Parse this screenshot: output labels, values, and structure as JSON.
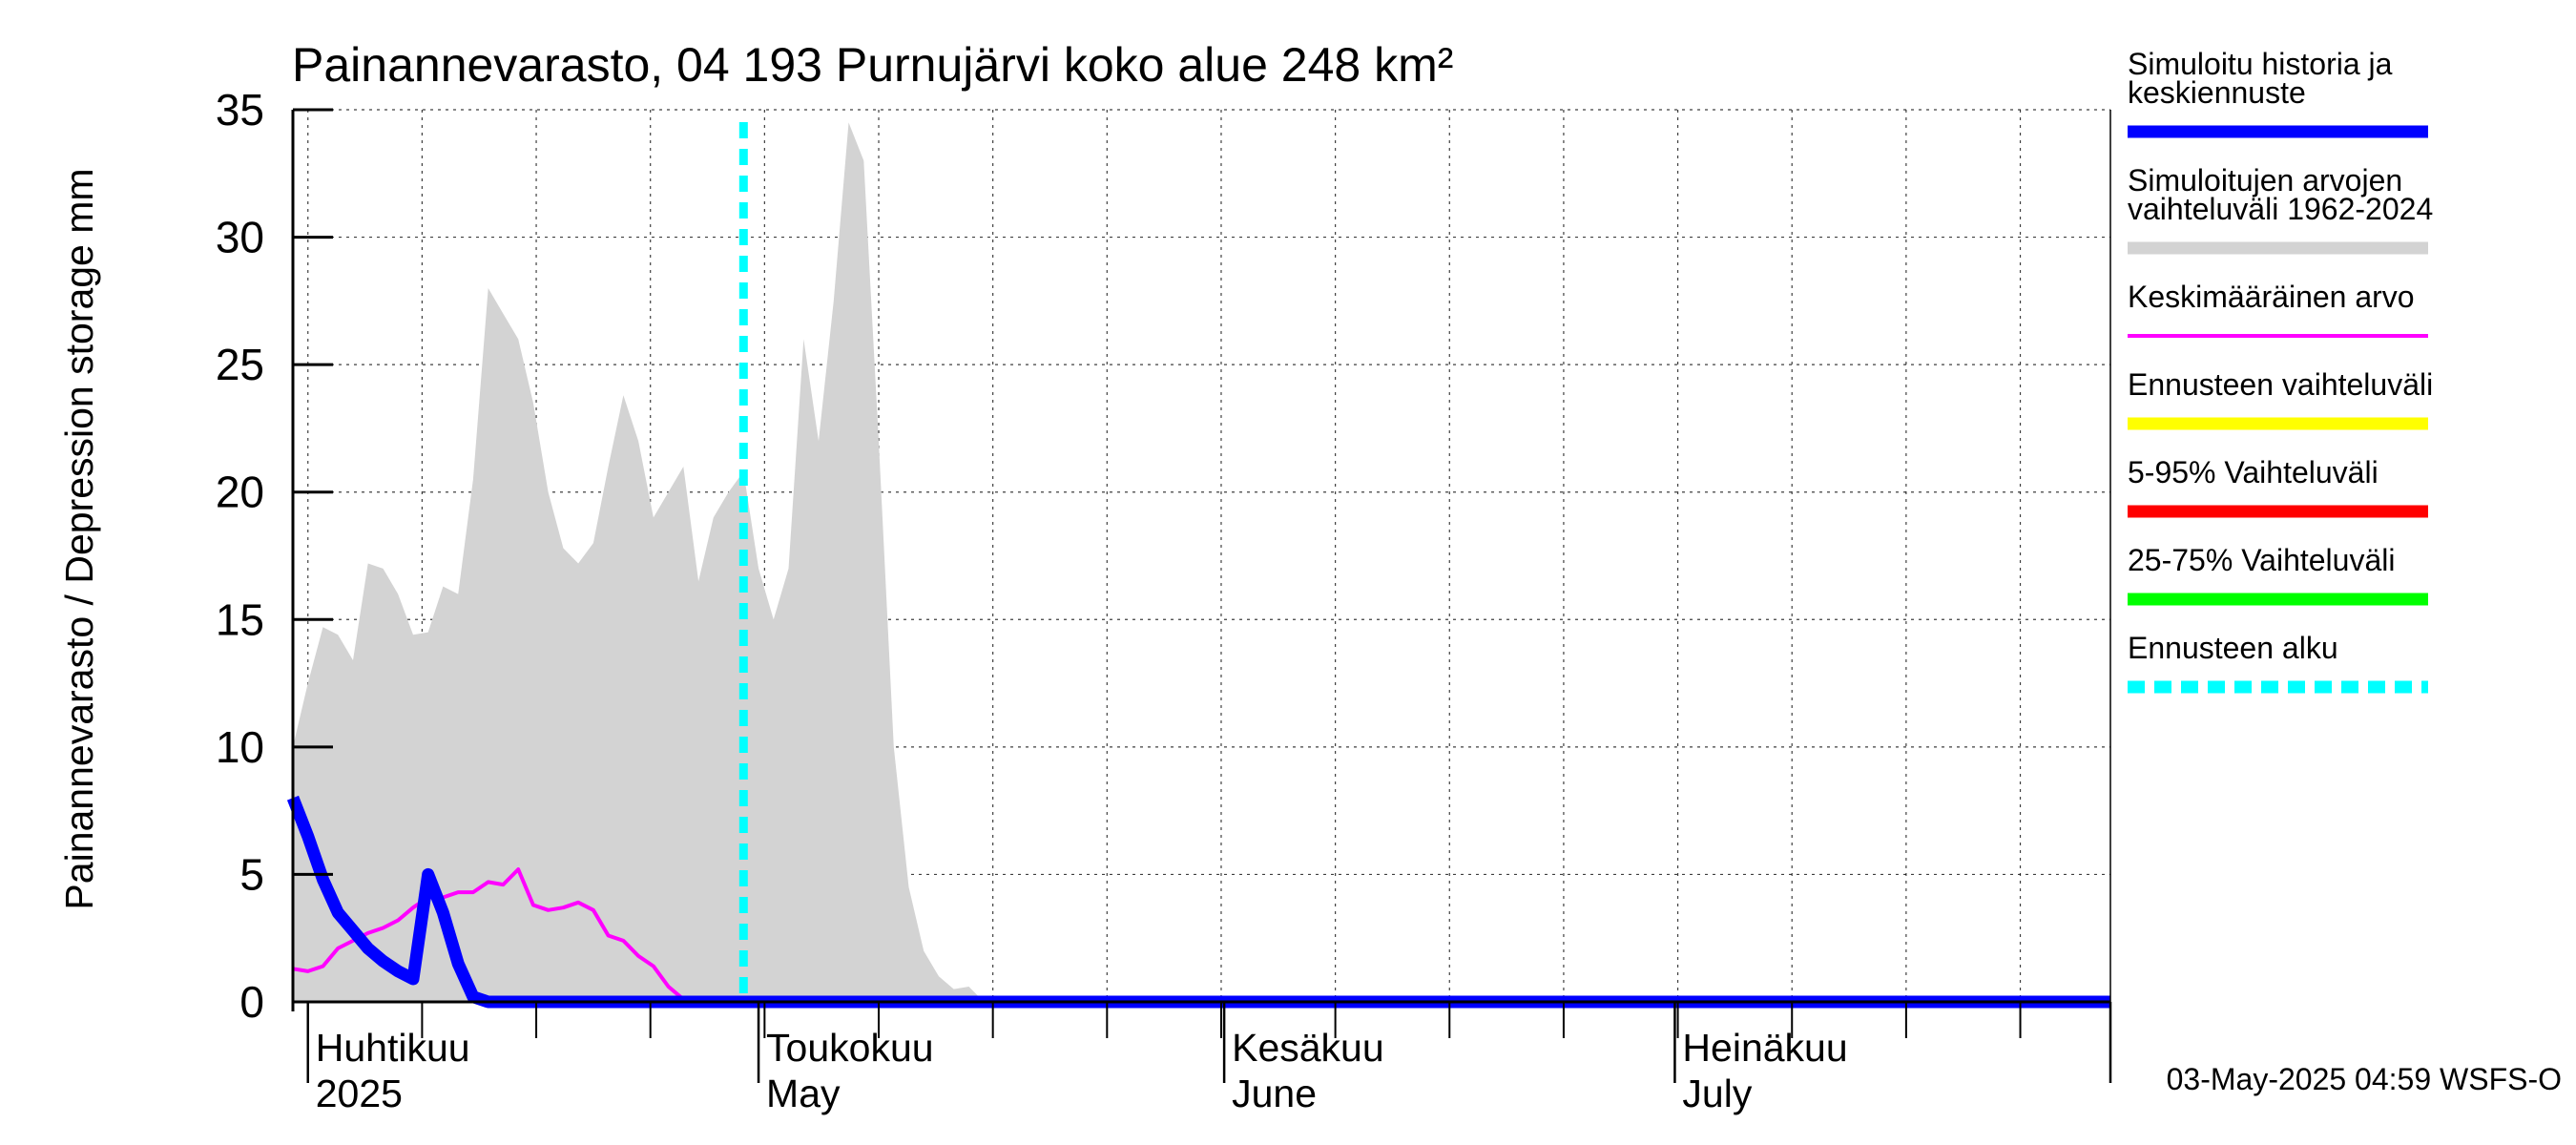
{
  "chart_data": {
    "type": "area",
    "title": "Painannevarasto, 04 193 Purnujärvi koko alue 248 km²",
    "ylabel": "Painannevarasto / Depression storage    mm",
    "ylim": [
      0,
      35
    ],
    "yticks": [
      0,
      5,
      10,
      15,
      20,
      25,
      30,
      35
    ],
    "x_range_days": [
      0,
      121
    ],
    "x_start_date": "2025-03-31",
    "month_labels": [
      {
        "fi": "Huhtikuu",
        "en": "2025",
        "day": 1
      },
      {
        "fi": "Toukokuu",
        "en": "May",
        "day": 31
      },
      {
        "fi": "Kesäkuu",
        "en": "June",
        "day": 62
      },
      {
        "fi": "Heinäkuu",
        "en": "July",
        "day": 92
      }
    ],
    "month_boundaries": [
      1,
      31,
      62,
      92,
      121
    ],
    "forecast_start_day": 30,
    "series": [
      {
        "name": "Simuloitujen arvojen vaihteluväli 1962-2024",
        "kind": "band",
        "color": "#d3d3d3",
        "x": [
          0,
          1,
          2,
          3,
          4,
          5,
          6,
          7,
          8,
          9,
          10,
          11,
          12,
          13,
          14,
          15,
          16,
          17,
          18,
          19,
          20,
          21,
          22,
          23,
          24,
          25,
          26,
          27,
          28,
          29,
          30,
          31,
          32,
          33,
          34,
          35,
          36,
          37,
          38,
          39,
          40,
          41,
          42,
          43,
          44,
          45,
          46,
          47,
          48,
          121
        ],
        "upper": [
          10,
          12.5,
          14.7,
          14.4,
          13.4,
          17.2,
          17.0,
          16.0,
          14.4,
          14.5,
          16.3,
          16.0,
          20.5,
          28.0,
          27.0,
          26.0,
          23.5,
          20.0,
          17.8,
          17.2,
          18.0,
          21.0,
          23.8,
          22.0,
          19.0,
          20.0,
          21.0,
          16.5,
          19.0,
          20.0,
          20.8,
          17.0,
          15.0,
          17.0,
          26.0,
          22.0,
          27.5,
          34.5,
          33.0,
          22.0,
          10.0,
          4.5,
          2.0,
          1.0,
          0.5,
          0.6,
          0.0,
          0.0,
          0.0,
          0.0
        ],
        "lower": [
          0,
          0,
          0,
          0,
          0,
          0,
          0,
          0,
          0,
          0,
          0,
          0,
          0,
          0,
          0,
          0,
          0,
          0,
          0,
          0,
          0,
          0,
          0,
          0,
          0,
          0,
          0,
          0,
          0,
          0,
          0,
          0,
          0,
          0,
          0,
          0,
          0,
          0,
          0,
          0,
          0,
          0,
          0,
          0,
          0,
          0,
          0,
          0,
          0,
          0
        ]
      },
      {
        "name": "Keskimääräinen arvo",
        "kind": "line",
        "color": "#ff00ff",
        "x": [
          0,
          1,
          2,
          3,
          4,
          5,
          6,
          7,
          8,
          9,
          10,
          11,
          12,
          13,
          14,
          15,
          16,
          17,
          18,
          19,
          20,
          21,
          22,
          23,
          24,
          25,
          26,
          27,
          28,
          29,
          121
        ],
        "y": [
          1.3,
          1.2,
          1.4,
          2.1,
          2.4,
          2.7,
          2.9,
          3.2,
          3.7,
          4.1,
          4.1,
          4.3,
          4.3,
          4.7,
          4.6,
          5.2,
          3.8,
          3.6,
          3.7,
          3.9,
          3.6,
          2.6,
          2.4,
          1.8,
          1.4,
          0.6,
          0.1,
          0.0,
          0.0,
          0.0,
          0.0
        ]
      },
      {
        "name": "Simuloitu historia ja keskiennuste",
        "kind": "line",
        "color": "#0000ff",
        "x": [
          0,
          1,
          2,
          3,
          4,
          5,
          6,
          7,
          8,
          9,
          10,
          11,
          12,
          13,
          14,
          121
        ],
        "y": [
          8.0,
          6.5,
          4.8,
          3.5,
          2.8,
          2.1,
          1.6,
          1.2,
          0.9,
          5.0,
          3.5,
          1.5,
          0.2,
          0.0,
          0.0,
          0.0
        ]
      },
      {
        "name": "Ennusteen alku",
        "kind": "vline",
        "color": "#00ffff",
        "x": 30
      }
    ]
  },
  "legend": [
    {
      "line1": "Simuloitu historia ja",
      "line2": "keskiennuste",
      "color": "#0000ff",
      "thick": true,
      "dashed": false
    },
    {
      "line1": "Simuloitujen arvojen",
      "line2": "vaihteluväli 1962-2024",
      "color": "#d3d3d3",
      "thick": true,
      "dashed": false
    },
    {
      "line1": "Keskimääräinen arvo",
      "line2": "",
      "color": "#ff00ff",
      "thick": false,
      "dashed": false
    },
    {
      "line1": "Ennusteen vaihteluväli",
      "line2": "",
      "color": "#ffff00",
      "thick": true,
      "dashed": false
    },
    {
      "line1": "5-95% Vaihteluväli",
      "line2": "",
      "color": "#ff0000",
      "thick": true,
      "dashed": false
    },
    {
      "line1": "25-75% Vaihteluväli",
      "line2": "",
      "color": "#00ff00",
      "thick": true,
      "dashed": false
    },
    {
      "line1": "Ennusteen alku",
      "line2": "",
      "color": "#00ffff",
      "thick": true,
      "dashed": true
    }
  ],
  "footer": "03-May-2025 04:59 WSFS-O"
}
